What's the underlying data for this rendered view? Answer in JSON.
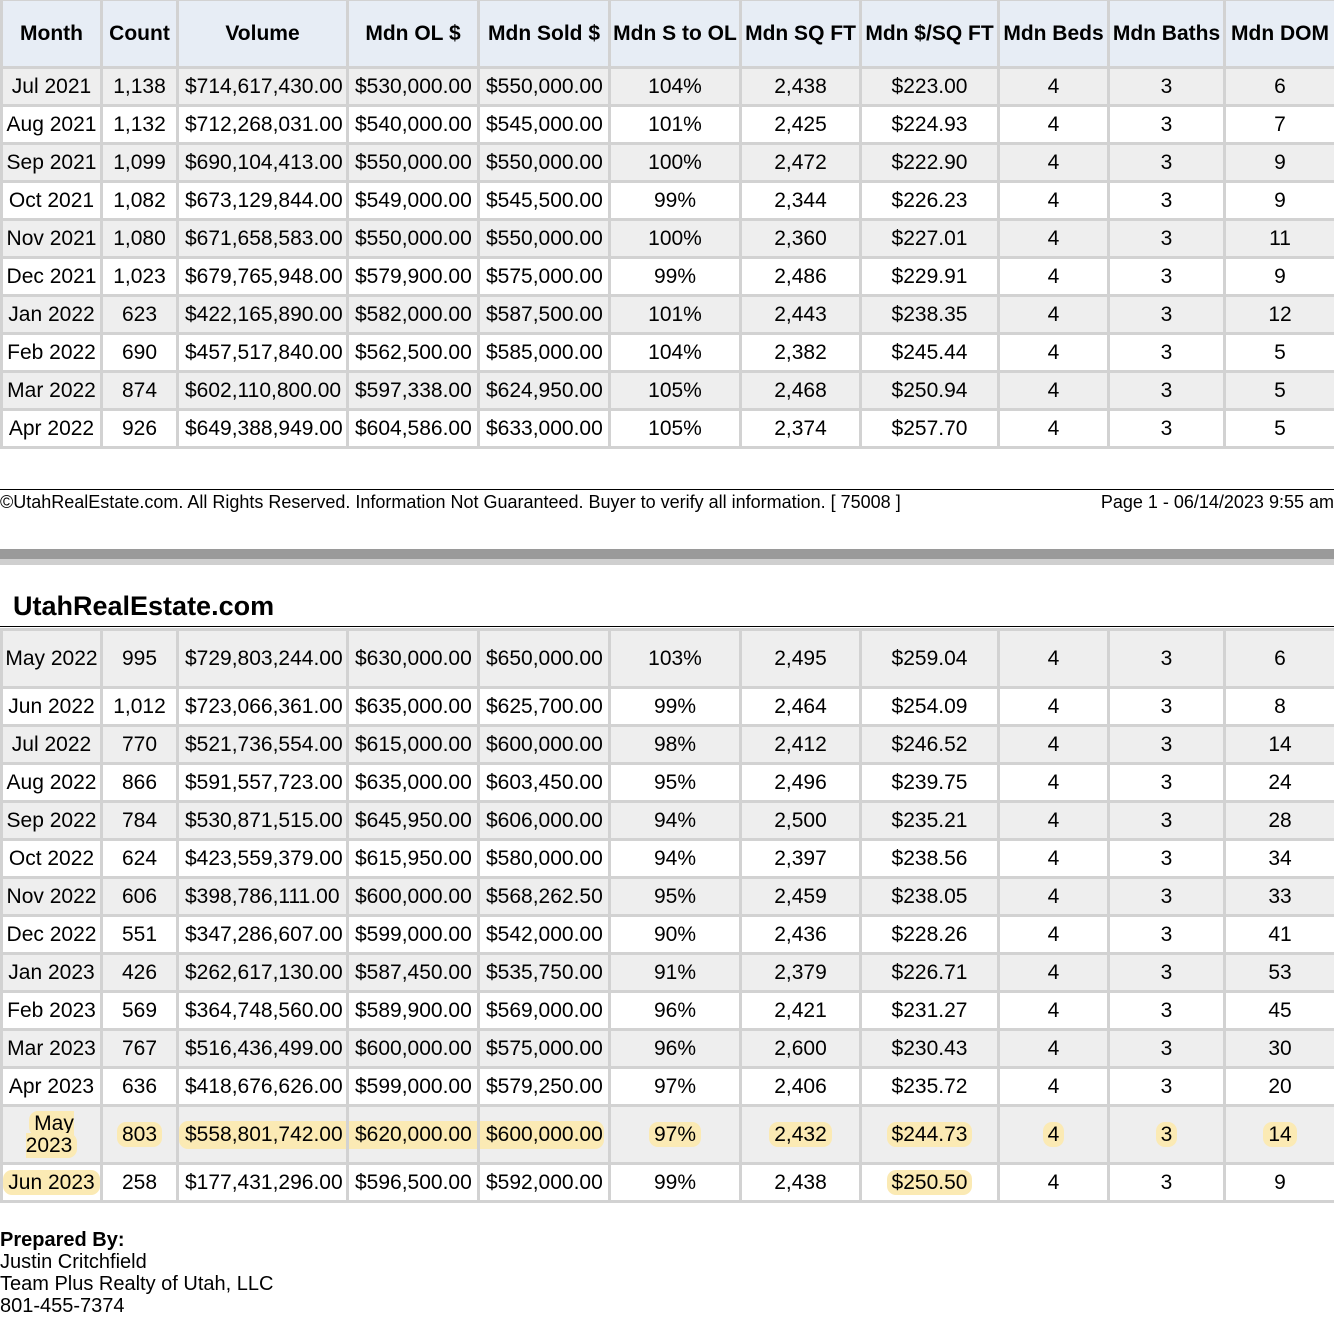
{
  "headers": [
    "Month",
    "Count",
    "Volume",
    "Mdn OL $",
    "Mdn Sold $",
    "Mdn S to OL",
    "Mdn SQ FT",
    "Mdn $/SQ FT",
    "Mdn Beds",
    "Mdn Baths",
    "Mdn DOM"
  ],
  "table1_rows": [
    [
      "Jul 2021",
      "1,138",
      "$714,617,430.00",
      "$530,000.00",
      "$550,000.00",
      "104%",
      "2,438",
      "$223.00",
      "4",
      "3",
      "6"
    ],
    [
      "Aug 2021",
      "1,132",
      "$712,268,031.00",
      "$540,000.00",
      "$545,000.00",
      "101%",
      "2,425",
      "$224.93",
      "4",
      "3",
      "7"
    ],
    [
      "Sep 2021",
      "1,099",
      "$690,104,413.00",
      "$550,000.00",
      "$550,000.00",
      "100%",
      "2,472",
      "$222.90",
      "4",
      "3",
      "9"
    ],
    [
      "Oct 2021",
      "1,082",
      "$673,129,844.00",
      "$549,000.00",
      "$545,500.00",
      "99%",
      "2,344",
      "$226.23",
      "4",
      "3",
      "9"
    ],
    [
      "Nov 2021",
      "1,080",
      "$671,658,583.00",
      "$550,000.00",
      "$550,000.00",
      "100%",
      "2,360",
      "$227.01",
      "4",
      "3",
      "11"
    ],
    [
      "Dec 2021",
      "1,023",
      "$679,765,948.00",
      "$579,900.00",
      "$575,000.00",
      "99%",
      "2,486",
      "$229.91",
      "4",
      "3",
      "9"
    ],
    [
      "Jan 2022",
      "623",
      "$422,165,890.00",
      "$582,000.00",
      "$587,500.00",
      "101%",
      "2,443",
      "$238.35",
      "4",
      "3",
      "12"
    ],
    [
      "Feb 2022",
      "690",
      "$457,517,840.00",
      "$562,500.00",
      "$585,000.00",
      "104%",
      "2,382",
      "$245.44",
      "4",
      "3",
      "5"
    ],
    [
      "Mar 2022",
      "874",
      "$602,110,800.00",
      "$597,338.00",
      "$624,950.00",
      "105%",
      "2,468",
      "$250.94",
      "4",
      "3",
      "5"
    ],
    [
      "Apr 2022",
      "926",
      "$649,388,949.00",
      "$604,586.00",
      "$633,000.00",
      "105%",
      "2,374",
      "$257.70",
      "4",
      "3",
      "5"
    ]
  ],
  "footer": {
    "copyright": "©UtahRealEstate.com. All Rights Reserved. Information Not Guaranteed. Buyer to verify all information. [ 75008 ]",
    "page": "Page 1 - 06/14/2023 9:55 am"
  },
  "site_title": "UtahRealEstate.com",
  "table2_rows": [
    [
      "May 2022",
      "995",
      "$729,803,244.00",
      "$630,000.00",
      "$650,000.00",
      "103%",
      "2,495",
      "$259.04",
      "4",
      "3",
      "6"
    ],
    [
      "Jun 2022",
      "1,012",
      "$723,066,361.00",
      "$635,000.00",
      "$625,700.00",
      "99%",
      "2,464",
      "$254.09",
      "4",
      "3",
      "8"
    ],
    [
      "Jul 2022",
      "770",
      "$521,736,554.00",
      "$615,000.00",
      "$600,000.00",
      "98%",
      "2,412",
      "$246.52",
      "4",
      "3",
      "14"
    ],
    [
      "Aug 2022",
      "866",
      "$591,557,723.00",
      "$635,000.00",
      "$603,450.00",
      "95%",
      "2,496",
      "$239.75",
      "4",
      "3",
      "24"
    ],
    [
      "Sep 2022",
      "784",
      "$530,871,515.00",
      "$645,950.00",
      "$606,000.00",
      "94%",
      "2,500",
      "$235.21",
      "4",
      "3",
      "28"
    ],
    [
      "Oct 2022",
      "624",
      "$423,559,379.00",
      "$615,950.00",
      "$580,000.00",
      "94%",
      "2,397",
      "$238.56",
      "4",
      "3",
      "34"
    ],
    [
      "Nov 2022",
      "606",
      "$398,786,111.00",
      "$600,000.00",
      "$568,262.50",
      "95%",
      "2,459",
      "$238.05",
      "4",
      "3",
      "33"
    ],
    [
      "Dec 2022",
      "551",
      "$347,286,607.00",
      "$599,000.00",
      "$542,000.00",
      "90%",
      "2,436",
      "$228.26",
      "4",
      "3",
      "41"
    ],
    [
      "Jan 2023",
      "426",
      "$262,617,130.00",
      "$587,450.00",
      "$535,750.00",
      "91%",
      "2,379",
      "$226.71",
      "4",
      "3",
      "53"
    ],
    [
      "Feb 2023",
      "569",
      "$364,748,560.00",
      "$589,900.00",
      "$569,000.00",
      "96%",
      "2,421",
      "$231.27",
      "4",
      "3",
      "45"
    ],
    [
      "Mar 2023",
      "767",
      "$516,436,499.00",
      "$600,000.00",
      "$575,000.00",
      "96%",
      "2,600",
      "$230.43",
      "4",
      "3",
      "30"
    ],
    [
      "Apr 2023",
      "636",
      "$418,676,626.00",
      "$599,000.00",
      "$579,250.00",
      "97%",
      "2,406",
      "$235.72",
      "4",
      "3",
      "20"
    ],
    [
      "May 2023",
      "803",
      "$558,801,742.00",
      "$620,000.00",
      "$600,000.00",
      "97%",
      "2,432",
      "$244.73",
      "4",
      "3",
      "14"
    ],
    [
      "Jun 2023",
      "258",
      "$177,431,296.00",
      "$596,500.00",
      "$592,000.00",
      "99%",
      "2,438",
      "$250.50",
      "4",
      "3",
      "9"
    ]
  ],
  "highlight_color": "#fbeab4",
  "prepared_by": {
    "label": "Prepared By:",
    "name": "Justin Critchfield",
    "company": "Team Plus Realty of Utah, LLC",
    "phone": "801-455-7374"
  }
}
